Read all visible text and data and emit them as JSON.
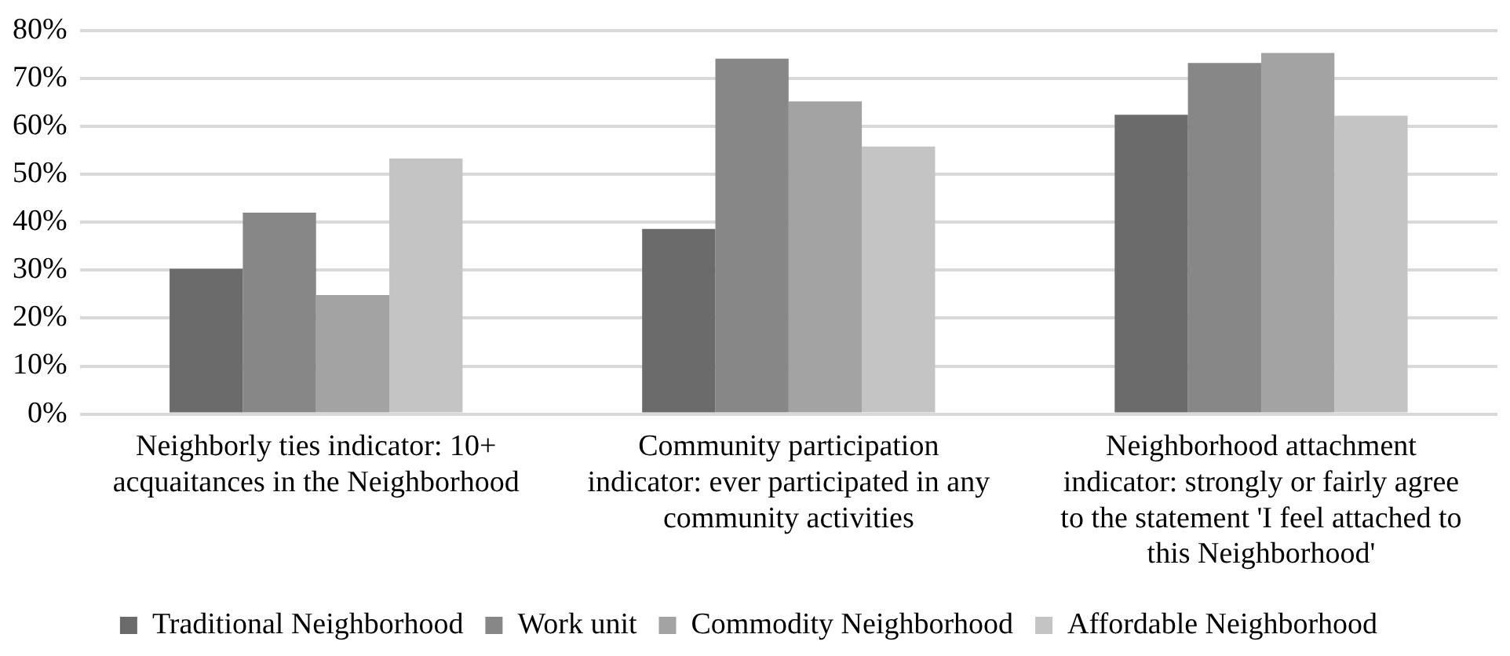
{
  "chart_data": {
    "type": "bar",
    "categories": [
      "Neighborly ties indicator: 10+ acquaitances in the Neighborhood",
      "Community participation indicator: ever participated in any community activities",
      "Neighborhood attachment indicator: strongly or fairly agree to the statement 'I feel attached to this Neighborhood'"
    ],
    "series": [
      {
        "name": "Traditional Neighborhood",
        "color": "#6b6b6b",
        "values": [
          30.3,
          38.6,
          62.4
        ]
      },
      {
        "name": "Work unit",
        "color": "#878787",
        "values": [
          42.0,
          74.1,
          73.2
        ]
      },
      {
        "name": "Commodity Neighborhood",
        "color": "#a3a3a3",
        "values": [
          24.8,
          65.2,
          75.3
        ]
      },
      {
        "name": "Affordable Neighborhood",
        "color": "#c4c4c4",
        "values": [
          53.3,
          55.8,
          62.2
        ]
      }
    ],
    "ylim": [
      0,
      80
    ],
    "yticks": [
      {
        "value": 0,
        "label": "0%"
      },
      {
        "value": 10,
        "label": "10%"
      },
      {
        "value": 20,
        "label": "20%"
      },
      {
        "value": 30,
        "label": "30%"
      },
      {
        "value": 40,
        "label": "40%"
      },
      {
        "value": 50,
        "label": "50%"
      },
      {
        "value": 60,
        "label": "60%"
      },
      {
        "value": 70,
        "label": "70%"
      },
      {
        "value": 80,
        "label": "80%"
      }
    ],
    "grid": "y",
    "legend": "bottom"
  }
}
